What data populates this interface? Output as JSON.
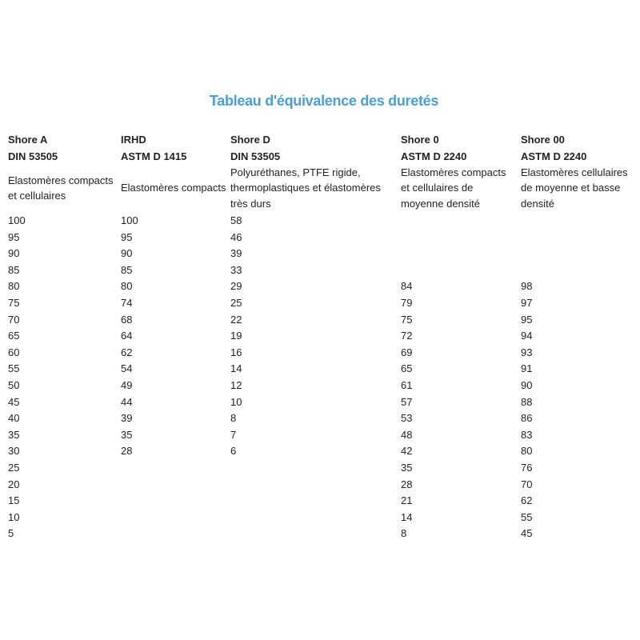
{
  "title": "Tableau d'équivalence des duretés",
  "columns": [
    {
      "name": "Shore A",
      "standard": "DIN 53505",
      "description": "Elastomères compacts et cellulaires",
      "values": [
        "100",
        "95",
        "90",
        "85",
        "80",
        "75",
        "70",
        "65",
        "60",
        "55",
        "50",
        "45",
        "40",
        "35",
        "30",
        "25",
        "20",
        "15",
        "10",
        "5"
      ]
    },
    {
      "name": "IRHD",
      "standard": "ASTM D 1415",
      "description": "Elastomères compacts",
      "values": [
        "100",
        "95",
        "90",
        "85",
        "80",
        "74",
        "68",
        "64",
        "62",
        "54",
        "49",
        "44",
        "39",
        "35",
        "28",
        "",
        "",
        "",
        "",
        ""
      ]
    },
    {
      "name": "Shore D",
      "standard": "DIN 53505",
      "description": "Polyuréthanes, PTFE rigide, thermoplastiques et élastomères très durs",
      "values": [
        "58",
        "46",
        "39",
        "33",
        "29",
        "25",
        "22",
        "19",
        "16",
        "14",
        "12",
        "10",
        "8",
        "7",
        "6",
        "",
        "",
        "",
        "",
        ""
      ]
    },
    {
      "name": "Shore 0",
      "standard": "ASTM D 2240",
      "description": "Elastomères compacts et cellulaires de moyenne densité",
      "values": [
        "",
        "",
        "",
        "",
        "84",
        "79",
        "75",
        "72",
        "69",
        "65",
        "61",
        "57",
        "53",
        "48",
        "42",
        "35",
        "28",
        "21",
        "14",
        "8"
      ]
    },
    {
      "name": "Shore 00",
      "standard": "ASTM D 2240",
      "description": "Elastomères cellulaires de moyenne et basse densité",
      "values": [
        "",
        "",
        "",
        "",
        "98",
        "97",
        "95",
        "94",
        "93",
        "91",
        "90",
        "88",
        "86",
        "83",
        "80",
        "76",
        "70",
        "62",
        "55",
        "45"
      ]
    }
  ],
  "colors": {
    "title": "#4a9fd4",
    "text": "#222222"
  }
}
